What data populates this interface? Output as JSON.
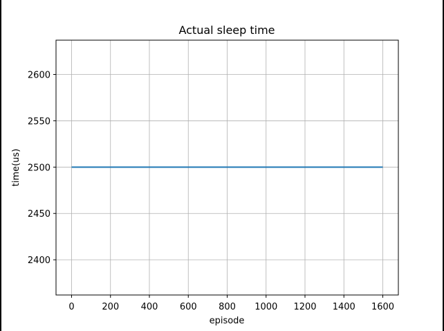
{
  "chart_data": {
    "type": "line",
    "title": "Actual sleep time",
    "xlabel": "episode",
    "ylabel": "time(us)",
    "xlim": [
      -80,
      1680
    ],
    "ylim": [
      2362,
      2637
    ],
    "xticks": [
      0,
      200,
      400,
      600,
      800,
      1000,
      1200,
      1400,
      1600
    ],
    "yticks": [
      2400,
      2450,
      2500,
      2550,
      2600
    ],
    "grid": true,
    "series": [
      {
        "color": "#1f77b4",
        "x": [
          0,
          1600
        ],
        "y": [
          2500,
          2500
        ]
      }
    ]
  }
}
